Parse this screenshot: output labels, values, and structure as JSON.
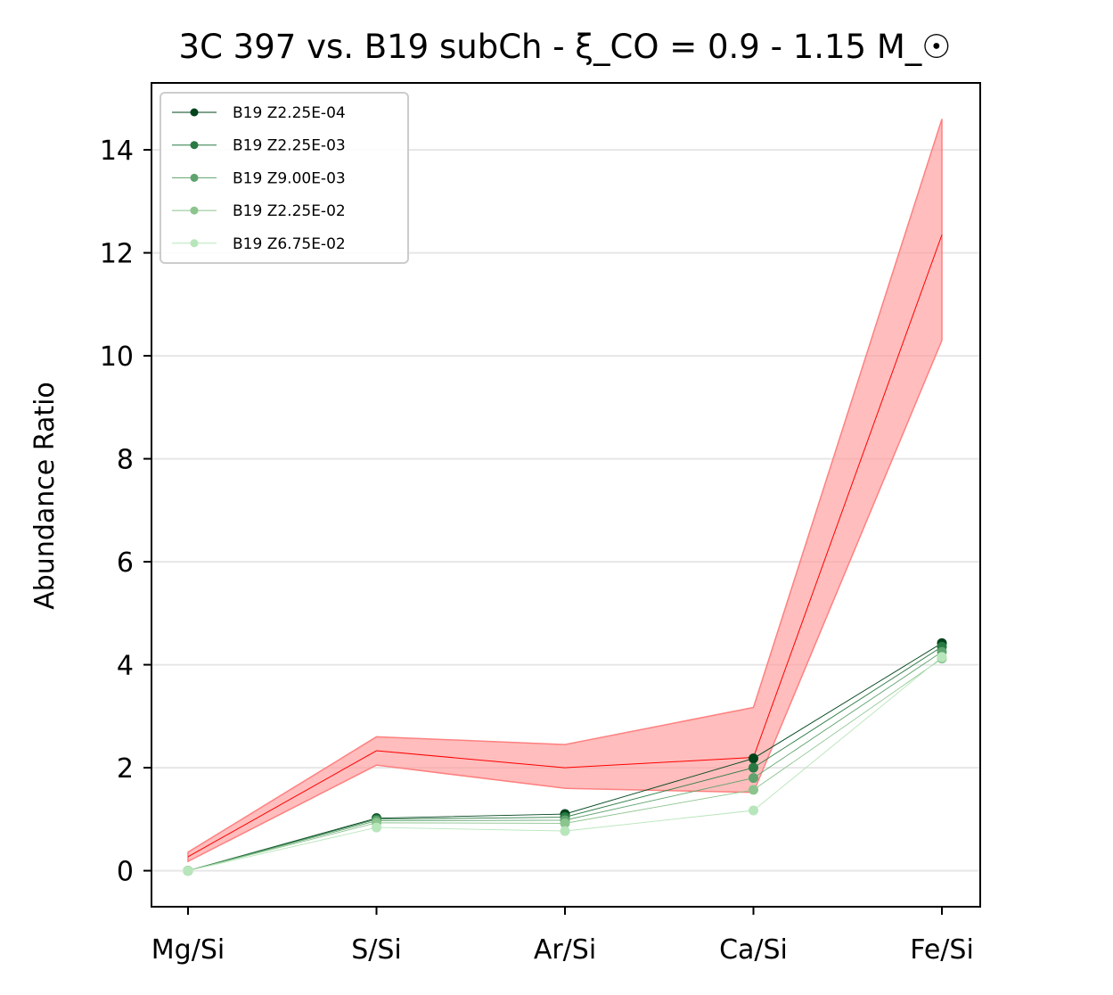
{
  "chart_data": {
    "type": "line",
    "title": "3C 397 vs. B19 subCh - ξ_CO = 0.9 - 1.15 M_☉",
    "xlabel": "",
    "ylabel": "Abundance Ratio",
    "categories": [
      "Mg/Si",
      "S/Si",
      "Ar/Si",
      "Ca/Si",
      "Fe/Si"
    ],
    "ylim": [
      -0.7,
      15.3
    ],
    "yticks": [
      0,
      2,
      4,
      6,
      8,
      10,
      12,
      14
    ],
    "grid": "horizontal",
    "legend_position": "top-left",
    "observed": {
      "color": "#ff0000",
      "band_color": "#ff9999",
      "values": [
        0.27,
        2.33,
        2.0,
        2.2,
        12.35
      ],
      "lower": [
        0.18,
        2.05,
        1.6,
        1.52,
        10.3
      ],
      "upper": [
        0.36,
        2.6,
        2.45,
        3.17,
        14.6
      ]
    },
    "series": [
      {
        "name": "B19 Z2.25E-04",
        "color": "#00441b",
        "values": [
          0.0,
          1.02,
          1.1,
          2.18,
          4.42
        ]
      },
      {
        "name": "B19 Z2.25E-03",
        "color": "#2a7a43",
        "values": [
          0.0,
          1.0,
          1.04,
          2.0,
          4.35
        ]
      },
      {
        "name": "B19 Z9.00E-03",
        "color": "#5fa36e",
        "values": [
          0.0,
          0.97,
          0.98,
          1.8,
          4.25
        ]
      },
      {
        "name": "B19 Z2.25E-02",
        "color": "#8cc48e",
        "values": [
          0.0,
          0.93,
          0.92,
          1.57,
          4.12
        ]
      },
      {
        "name": "B19 Z6.75E-02",
        "color": "#b8e6bb",
        "values": [
          0.0,
          0.84,
          0.77,
          1.17,
          4.15
        ]
      }
    ]
  }
}
